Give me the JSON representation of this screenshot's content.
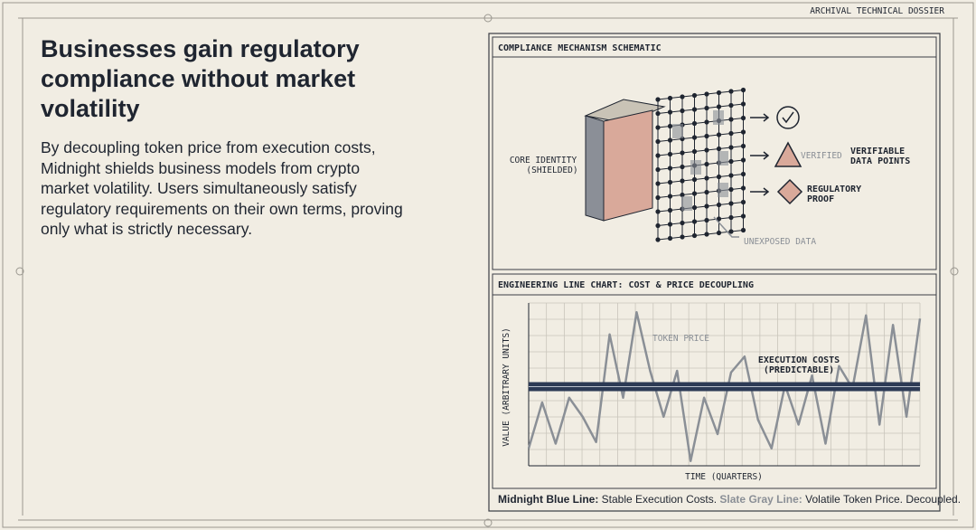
{
  "header": {
    "label": "ARCHIVAL TECHNICAL DOSSIER"
  },
  "content": {
    "title": "Businesses gain regulatory compliance without market volatility",
    "body": "By decoupling token price from execution costs, Midnight shields business models from crypto market volatility. Users simultaneously satisfy regulatory requirements on their own terms, proving only what is strictly necessary."
  },
  "schematic": {
    "title": "COMPLIANCE MECHANISM SCHEMATIC",
    "core_identity": [
      "CORE IDENTITY",
      "(SHIELDED)"
    ],
    "verified": "VERIFIED",
    "verifiable": [
      "VERIFIABLE",
      "DATA POINTS"
    ],
    "proof": [
      "REGULATORY",
      "PROOF"
    ],
    "unexposed": "UNEXPOSED DATA"
  },
  "chart_data": {
    "type": "line",
    "title": "ENGINEERING LINE CHART: COST & PRICE DECOUPLING",
    "y_label": "VALUE (ARBITRARY UNITS)",
    "x_label": "TIME (QUARTERS)",
    "annotations": [
      "TOKEN PRICE",
      "EXECUTION COSTS",
      "(PREDICTABLE)"
    ],
    "categories": [
      null,
      null,
      null,
      null,
      null,
      null,
      null,
      null,
      null,
      null,
      null,
      null,
      null,
      null,
      null,
      null,
      null,
      null,
      null,
      null,
      null,
      null,
      null,
      null,
      null,
      null,
      null,
      null,
      null,
      null
    ],
    "series": [
      {
        "name": "Token Price",
        "color": "#8a8f96",
        "values": [
          1.1,
          4.0,
          1.4,
          4.3,
          3.1,
          1.5,
          8.3,
          4.3,
          9.7,
          6.0,
          3.1,
          6.0,
          0.3,
          4.3,
          2.0,
          5.9,
          6.9,
          2.9,
          1.1,
          5.1,
          2.6,
          5.7,
          1.4,
          6.3,
          4.9,
          9.5,
          2.6,
          8.9,
          3.1,
          9.3
        ]
      },
      {
        "name": "Execution Costs",
        "color": "#2c3a55",
        "values": [
          5.0,
          5.0,
          5.0,
          5.0,
          5.0,
          5.0,
          5.0,
          5.0,
          5.0,
          5.0,
          5.0,
          5.0,
          5.0,
          5.0,
          5.0,
          5.0,
          5.0,
          5.0,
          5.0,
          5.0,
          5.0,
          5.0,
          5.0,
          5.0,
          5.0,
          5.0,
          5.0,
          5.0,
          5.0,
          5.0
        ]
      }
    ],
    "ylim": [
      0,
      10
    ],
    "grid": true,
    "caption": [
      "Midnight Blue Line:",
      "Stable Execution Costs.",
      "Slate Gray Line:",
      "Volatile Token Price. Decoupled."
    ]
  }
}
